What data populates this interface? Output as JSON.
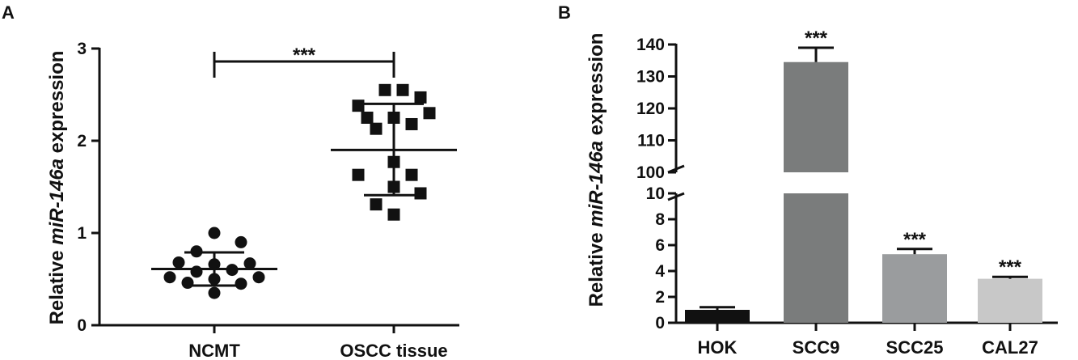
{
  "chart_data": [
    {
      "panel": "A",
      "type": "scatter",
      "ylabel_parts": [
        "Relative ",
        "miR-146a",
        " expression"
      ],
      "categories": [
        "NCMT",
        "OSCC tissue"
      ],
      "ylim": [
        0,
        3
      ],
      "yticks": [
        "0",
        "1",
        "2",
        "3"
      ],
      "groups": [
        {
          "name": "NCMT",
          "marker": "circle",
          "mean": 0.61,
          "sd_upper": 0.79,
          "sd_lower": 0.43,
          "points": [
            1.0,
            0.9,
            0.8,
            0.68,
            0.67,
            0.66,
            0.6,
            0.58,
            0.52,
            0.52,
            0.5,
            0.46,
            0.45,
            0.35
          ]
        },
        {
          "name": "OSCC tissue",
          "marker": "square",
          "mean": 1.9,
          "sd_upper": 2.4,
          "sd_lower": 1.41,
          "points": [
            2.55,
            2.55,
            2.47,
            2.38,
            2.3,
            2.25,
            2.25,
            2.18,
            2.13,
            1.77,
            1.63,
            1.63,
            1.5,
            1.43,
            1.31,
            1.2
          ]
        }
      ],
      "significance": "***"
    },
    {
      "panel": "B",
      "type": "bar",
      "ylabel_parts": [
        "Relative ",
        "miR-146a",
        " expression"
      ],
      "categories": [
        "HOK",
        "SCC9",
        "SCC25",
        "CAL27"
      ],
      "values": [
        1.0,
        134.5,
        5.3,
        3.4
      ],
      "errors": [
        0.2,
        4.5,
        0.4,
        0.15
      ],
      "colors": [
        "#111111",
        "#7a7c7c",
        "#9a9c9e",
        "#c8c8c8"
      ],
      "axis_break": {
        "lower_range": [
          0,
          10
        ],
        "upper_range": [
          100,
          140
        ],
        "lower_ticks": [
          "0",
          "2",
          "4",
          "6",
          "8",
          "10"
        ],
        "upper_ticks": [
          "100",
          "110",
          "120",
          "130",
          "140"
        ]
      },
      "significance": [
        "",
        "***",
        "***",
        "***"
      ]
    }
  ]
}
